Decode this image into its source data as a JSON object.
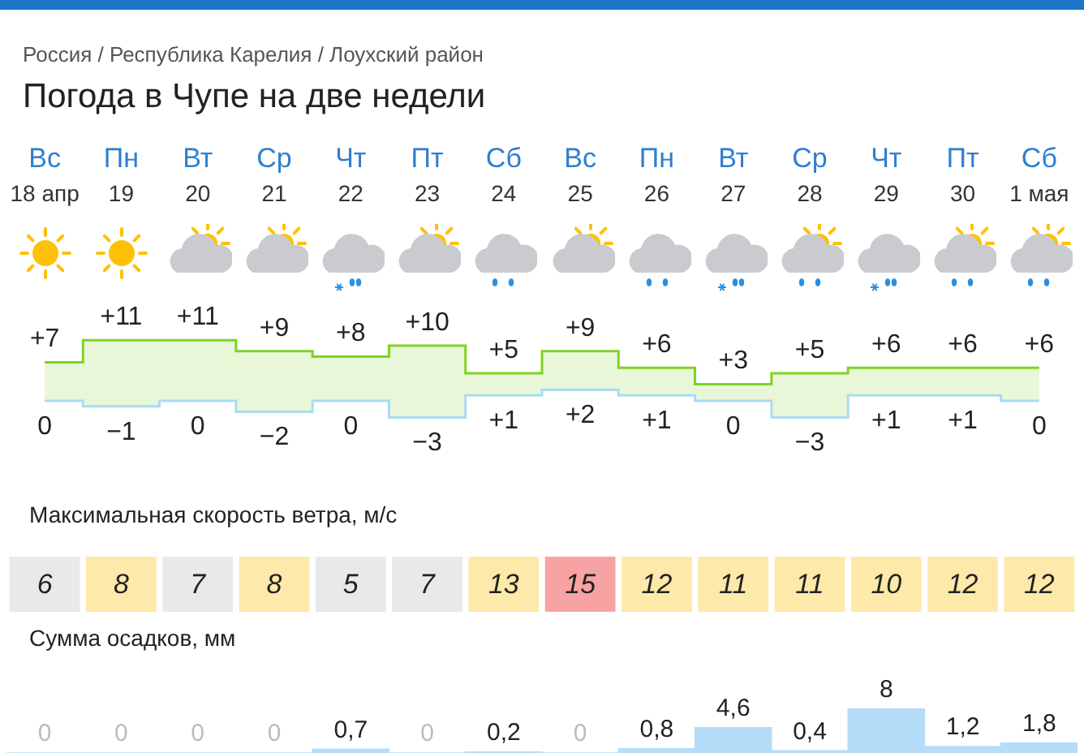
{
  "chart_data": [
    {
      "type": "step",
      "title": "Погода в Чупе на две недели",
      "annotations": [
        "Россия / Республика Карелия / Лоухский район"
      ],
      "categories": [
        "Вс\n18 апр",
        "Пн\n19",
        "Вт\n20",
        "Ср\n21",
        "Чт\n22",
        "Пт\n23",
        "Сб\n24",
        "Вс\n25",
        "Пн\n26",
        "Вт\n27",
        "Ср\n28",
        "Чт\n29",
        "Пт\n30",
        "Сб\n1 мая"
      ],
      "series": [
        {
          "color": "#7ed321",
          "values": [
            7,
            11,
            11,
            9,
            8,
            10,
            5,
            9,
            6,
            3,
            5,
            6,
            6,
            6
          ],
          "lower": [
            0,
            -1,
            0,
            -2,
            0,
            -3,
            1,
            2,
            1,
            0,
            -3,
            1,
            1,
            0
          ],
          "upper": [
            7,
            11,
            11,
            9,
            8,
            10,
            5,
            9,
            6,
            3,
            5,
            6,
            6,
            6
          ],
          "value_labels": [
            "+7",
            "+11",
            "+11",
            "+9",
            "+8",
            "+10",
            "+5",
            "+9",
            "+6",
            "+3",
            "+5",
            "+6",
            "+6",
            "+6"
          ]
        },
        {
          "color": "#a8dcf5",
          "values": [
            0,
            -1,
            0,
            -2,
            0,
            -3,
            1,
            2,
            1,
            0,
            -3,
            1,
            1,
            0
          ],
          "value_labels": [
            "0",
            "−1",
            "0",
            "−2",
            "0",
            "−3",
            "+1",
            "+2",
            "+1",
            "0",
            "−3",
            "+1",
            "+1",
            "0"
          ]
        }
      ],
      "legend": false
    },
    {
      "type": "other",
      "title": "Максимальная скорость ветра, м/с",
      "categories": [
        null,
        null,
        null,
        null,
        null,
        null,
        null,
        null,
        null,
        null,
        null,
        null,
        null,
        null
      ],
      "values": [
        6,
        8,
        7,
        8,
        5,
        7,
        13,
        15,
        12,
        11,
        11,
        10,
        12,
        12
      ],
      "data_labels": true,
      "colors": [
        "#e8e9eb",
        "#fde9a9",
        "#e8e9eb",
        "#fde9a9",
        "#e8e9eb",
        "#e8e9eb",
        "#fde9a9",
        "#f8a3a3",
        "#fde9a9",
        "#fde9a9",
        "#fde9a9",
        "#fde9a9",
        "#fde9a9",
        "#fde9a9"
      ]
    },
    {
      "type": "bar",
      "title": "Сумма осадков, мм",
      "categories": [
        null,
        null,
        null,
        null,
        null,
        null,
        null,
        null,
        null,
        null,
        null,
        null,
        null,
        null
      ],
      "values": [
        0,
        0,
        0,
        0,
        0.7,
        0,
        0.2,
        0,
        0.8,
        4.6,
        0.4,
        8,
        1.2,
        1.8
      ],
      "value_labels": [
        "0",
        "0",
        "0",
        "0",
        "0,7",
        "0",
        "0,2",
        "0",
        "0,8",
        "4,6",
        "0,4",
        "8",
        "1,2",
        "1,8"
      ],
      "color": "#b5dcf8"
    }
  ]
}
